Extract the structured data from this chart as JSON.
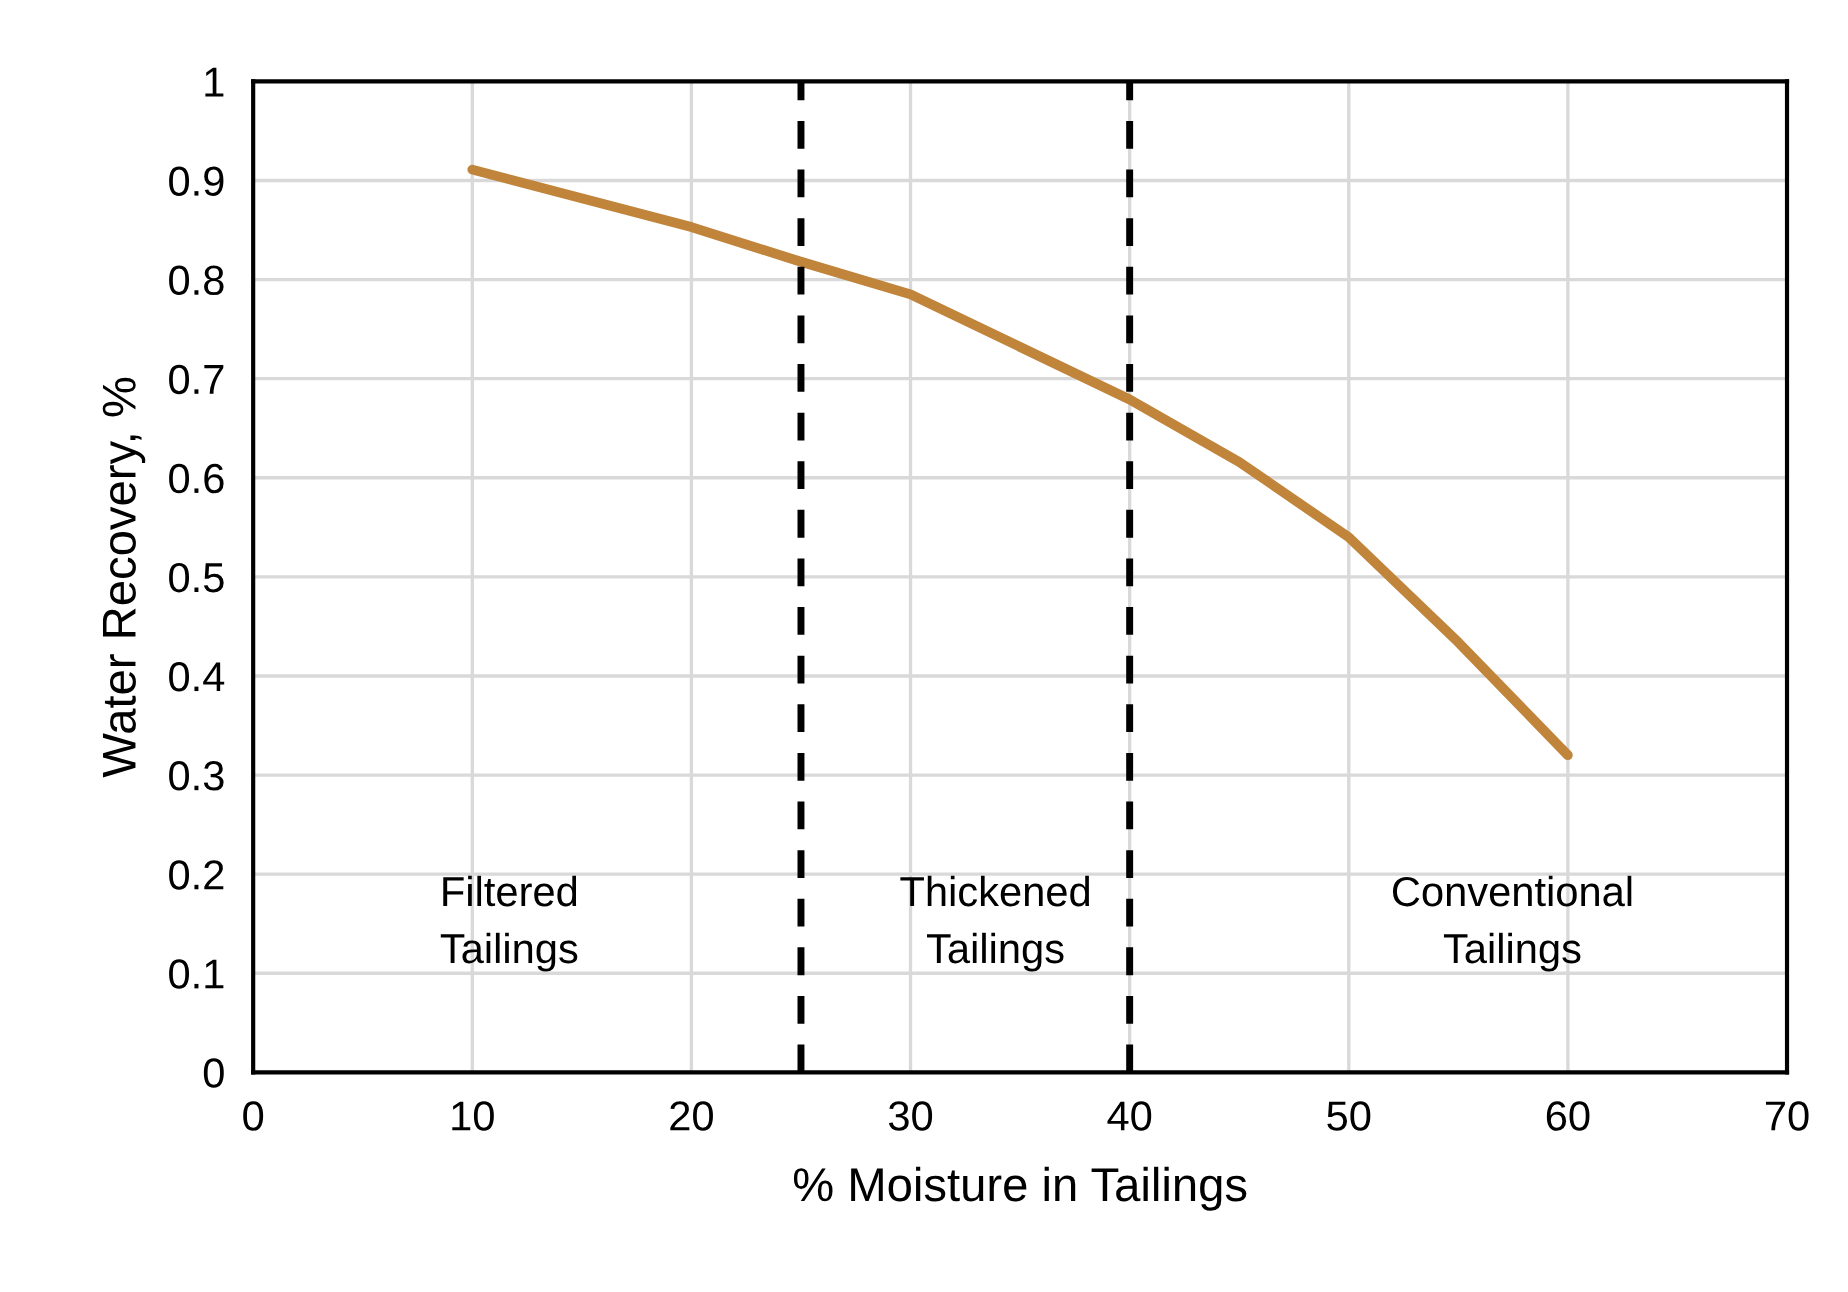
{
  "chart_data": {
    "type": "line",
    "xlabel": "% Moisture in Tailings",
    "ylabel": "Water Recovery, %",
    "series": [
      {
        "color": "#c0843a",
        "x": [
          10,
          20,
          25,
          30,
          40,
          45,
          50,
          55,
          60
        ],
        "values": [
          0.911,
          0.853,
          0.818,
          0.785,
          0.679,
          0.616,
          0.54,
          0.434,
          0.32
        ]
      }
    ],
    "xlim": [
      0,
      70
    ],
    "xticks": [
      0,
      10,
      20,
      30,
      40,
      50,
      60,
      70
    ],
    "ylim": [
      0,
      1
    ],
    "yticks": [
      0,
      0.1,
      0.2,
      0.3,
      0.4,
      0.5,
      0.6,
      0.7,
      0.8,
      0.9,
      1
    ],
    "grid": true,
    "marker": "none",
    "line_style": "solid",
    "ref_lines": [
      {
        "axis": "x",
        "value": 25,
        "color": "#000000",
        "line_style": "dashed"
      },
      {
        "axis": "x",
        "value": 40,
        "color": "#000000",
        "line_style": "dashed"
      }
    ],
    "annotations": [
      "Filtered\nTailings",
      "Thickened\nTailings",
      "Conventional\nTailings"
    ]
  }
}
